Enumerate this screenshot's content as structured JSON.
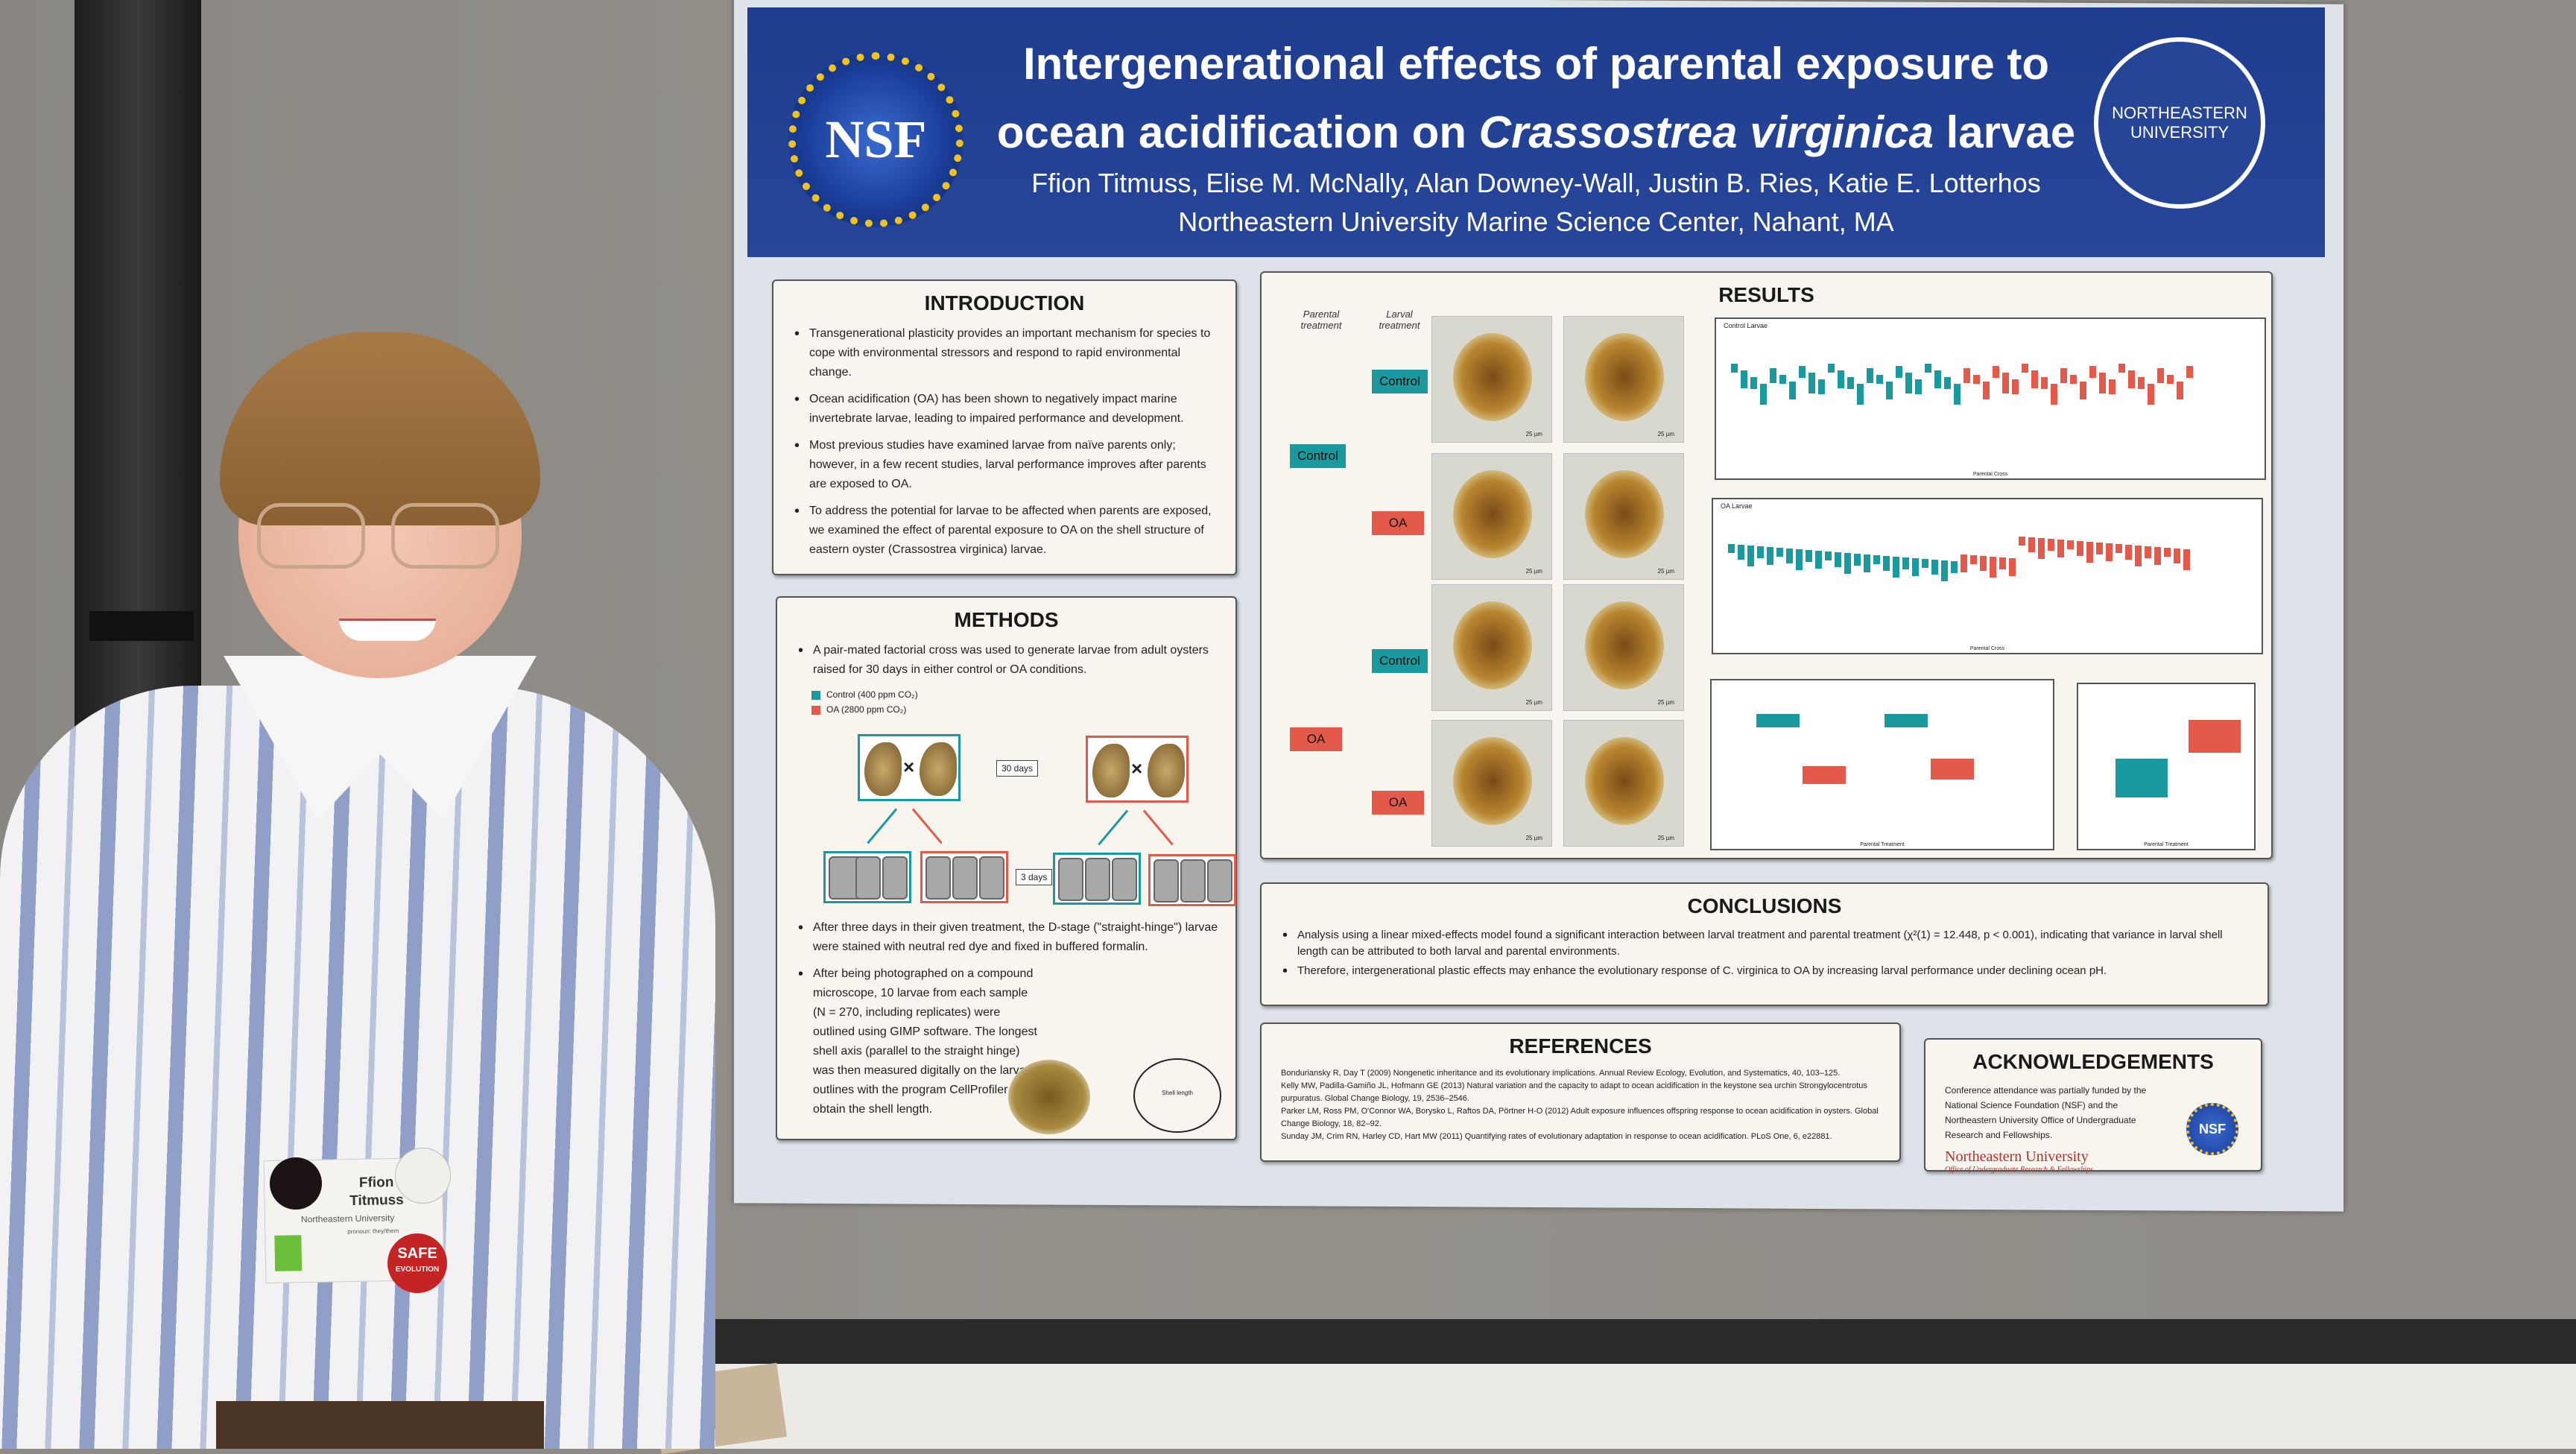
{
  "poster": {
    "title_line1": "Intergenerational effects of parental exposure to",
    "title_line2_pre": "ocean acidification on ",
    "title_species": "Crassostrea virginica",
    "title_line2_post": " larvae",
    "authors": "Ffion Titmuss, Elise M. McNally, Alan Downey-Wall, Justin B. Ries, Katie E. Lotterhos",
    "affiliation": "Northeastern University Marine Science Center, Nahant, MA",
    "logo_left": "NSF",
    "logo_right": "NORTHEASTERN UNIVERSITY",
    "introduction": {
      "heading": "INTRODUCTION",
      "bullets": [
        "Transgenerational plasticity provides an important mechanism for species to cope with environmental stressors and respond to rapid environmental change.",
        "Ocean acidification (OA) has been shown to negatively impact marine invertebrate larvae, leading to impaired performance and development.",
        "Most previous studies have examined larvae from naïve parents only; however, in a few recent studies, larval performance improves after parents are exposed to OA.",
        "To address the potential for larvae to be affected when parents are exposed, we examined the effect of parental exposure to OA on the shell structure of eastern oyster (Crassostrea virginica) larvae."
      ]
    },
    "methods": {
      "heading": "METHODS",
      "bullet1": "A pair-mated factorial cross was used to generate larvae from adult oysters raised for 30 days in either control or OA conditions.",
      "legend_control": "Control (400 ppm CO₂)",
      "legend_oa": "OA (2800 ppm CO₂)",
      "days_30": "30 days",
      "days_3": "3 days",
      "bullet2": "After three days in their given treatment, the D-stage (\"straight-hinge\") larvae were stained with neutral red dye and fixed in buffered formalin.",
      "bullet3": "After being photographed on a compound microscope, 10 larvae from each sample (N = 270, including replicates) were outlined using GIMP software. The longest shell axis (parallel to the straight hinge) was then measured digitally on the larvae outlines with the program CellProfiler to obtain the shell length.",
      "outline_label": "Shell length"
    },
    "results": {
      "heading": "RESULTS",
      "parental_label": "Parental treatment",
      "larval_label": "Larval treatment",
      "control": "Control",
      "oa": "OA",
      "scale": "25 µm",
      "chart1_title": "Control Larvae",
      "chart2_title": "OA Larvae",
      "x_label_cross": "Parental Cross",
      "x_label_treat": "Parental Treatment"
    },
    "conclusions": {
      "heading": "CONCLUSIONS",
      "bullets": [
        "Analysis using a linear mixed-effects model found a significant interaction between larval treatment and parental treatment (χ²(1) = 12.448, p < 0.001), indicating that variance in larval shell length can be attributed to both larval and parental environments.",
        "Therefore, intergenerational plastic effects may enhance the evolutionary response of C. virginica to OA by increasing larval performance under declining ocean pH."
      ]
    },
    "references": {
      "heading": "REFERENCES",
      "items": [
        "Bonduriansky R, Day T (2009) Nongenetic inheritance and its evolutionary implications. Annual Review Ecology, Evolution, and Systematics, 40, 103–125.",
        "Kelly MW, Padilla-Gamiño JL, Hofmann GE (2013) Natural variation and the capacity to adapt to ocean acidification in the keystone sea urchin Strongylocentrotus purpuratus. Global Change Biology, 19, 2536–2546.",
        "Parker LM, Ross PM, O'Connor WA, Borysko L, Raftos DA, Pörtner H-O (2012) Adult exposure influences offspring response to ocean acidification in oysters. Global Change Biology, 18, 82–92.",
        "Sunday JM, Crim RN, Harley CD, Hart MW (2011) Quantifying rates of evolutionary adaptation in response to ocean acidification. PLoS One, 6, e22881."
      ]
    },
    "acknowledgements": {
      "heading": "ACKNOWLEDGEMENTS",
      "text": "Conference attendance was partially funded by the National Science Foundation (NSF) and the Northeastern University Office of Undergraduate Research and Fellowships.",
      "logo_name": "Northeastern University",
      "logo_sub": "Office of Undergraduate Research & Fellowships"
    },
    "colors": {
      "header_blue": "#27469a",
      "control_teal": "#1a9a9e",
      "oa_red": "#e35a4a"
    }
  },
  "badge": {
    "first_name": "Ffion",
    "last_name": "Titmuss",
    "university": "Northeastern University",
    "pronoun": "pronoun: they/them",
    "pin_text": "SAFE",
    "pin_sub": "EVOLUTION"
  }
}
